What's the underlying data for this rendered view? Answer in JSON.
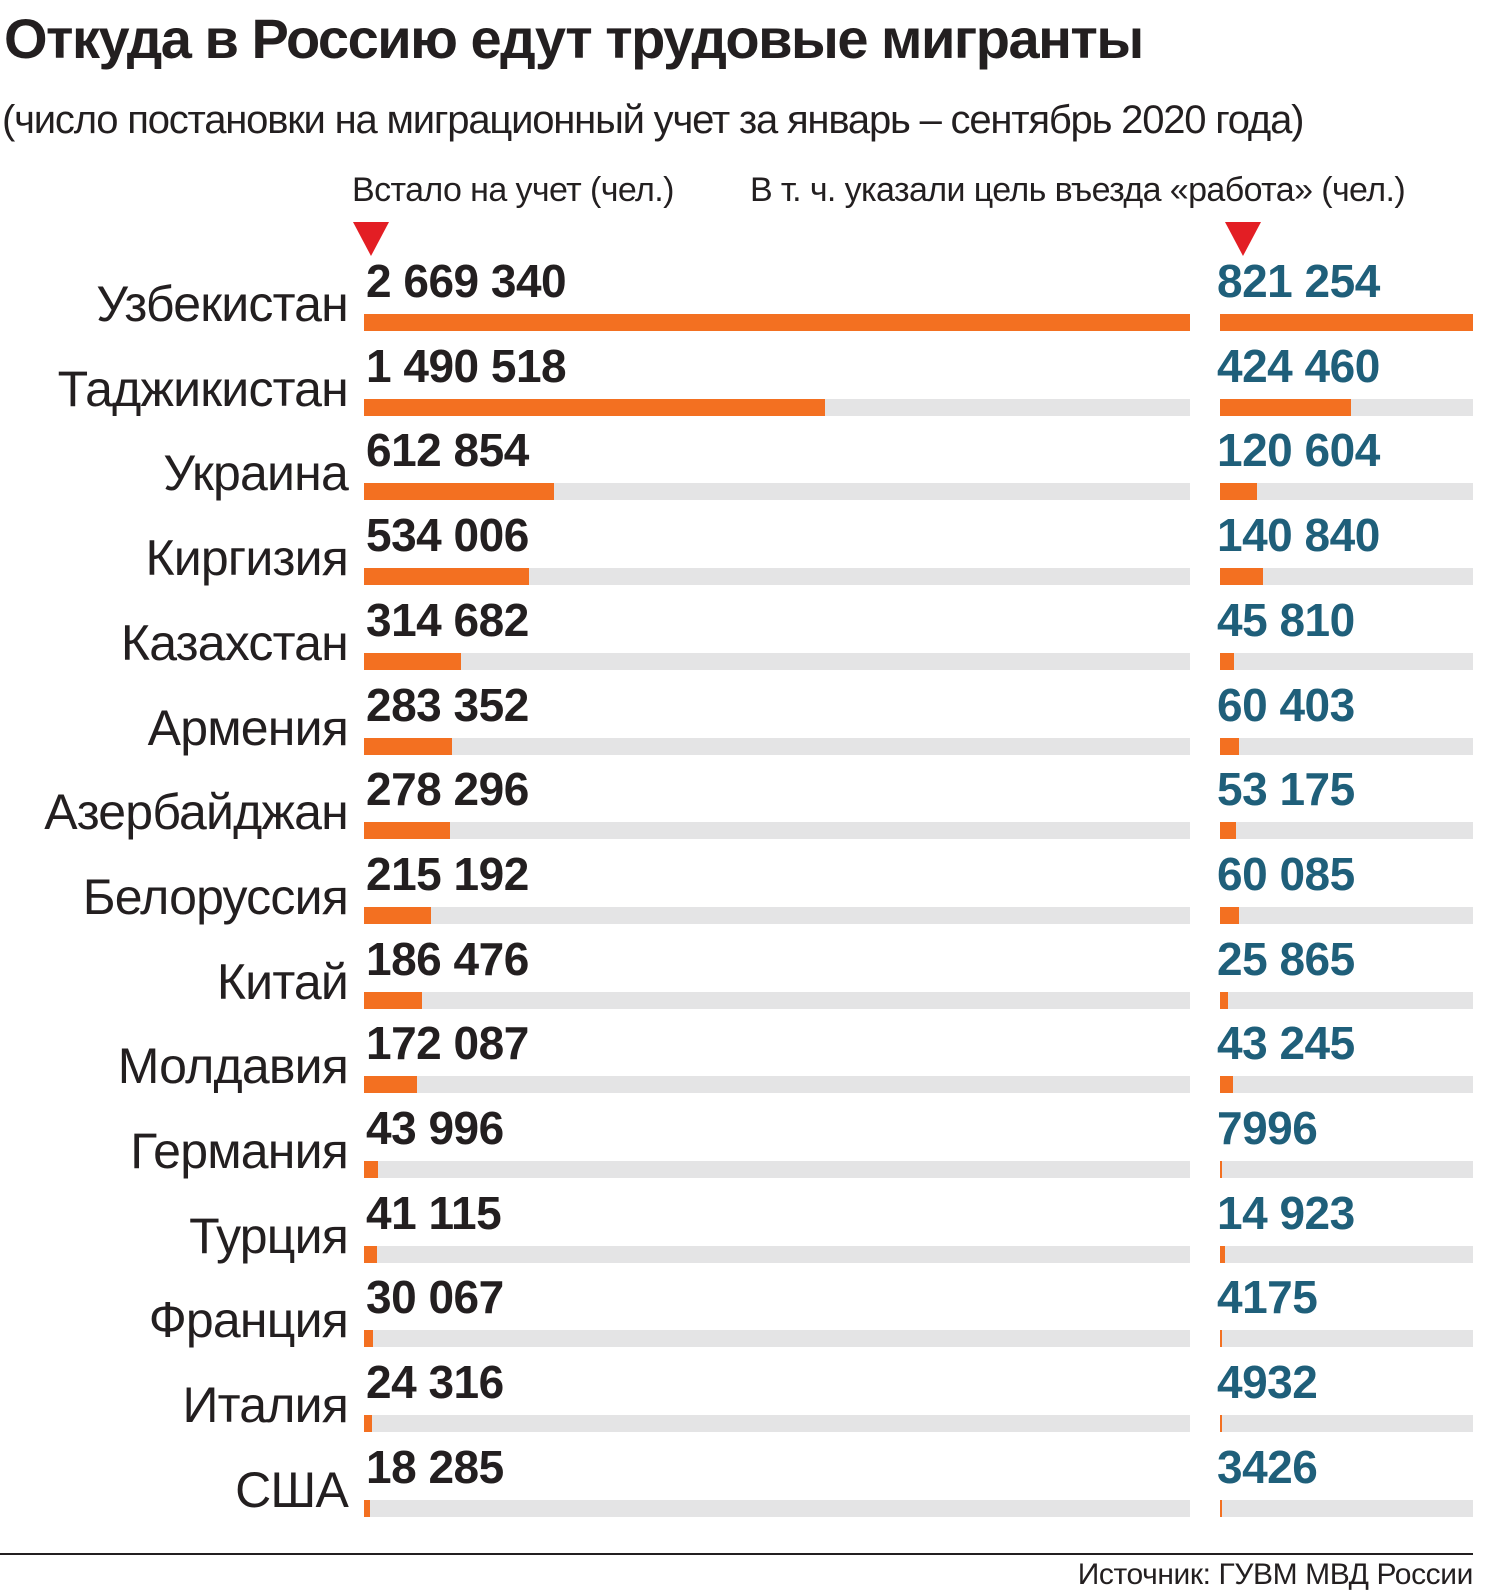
{
  "title": "Откуда в Россию едут трудовые мигранты",
  "subtitle": "(число постановки на миграционный учет за январь – сентябрь 2020 года)",
  "columns": {
    "registered": "Встало на учет (чел.)",
    "work_purpose": "В т. ч. указали цель въезда «работа» (чел.)"
  },
  "source": "Источник: ГУВМ МВД России",
  "colors": {
    "bar": "#f37021",
    "track": "#e4e4e5",
    "marker": "#e31e24",
    "work_value_text": "#1f5f7a",
    "text": "#231f20"
  },
  "chart_data": {
    "type": "bar",
    "orientation": "horizontal",
    "title": "Откуда в Россию едут трудовые мигранты",
    "subtitle": "(число постановки на миграционный учет за январь – сентябрь 2020 года)",
    "categories": [
      "Узбекистан",
      "Таджикистан",
      "Украина",
      "Киргизия",
      "Казахстан",
      "Армения",
      "Азербайджан",
      "Белоруссия",
      "Китай",
      "Молдавия",
      "Германия",
      "Турция",
      "Франция",
      "Италия",
      "США"
    ],
    "series": [
      {
        "name": "Встало на учет (чел.)",
        "values": [
          2669340,
          1490518,
          612854,
          534006,
          314682,
          283352,
          278296,
          215192,
          186476,
          172087,
          43996,
          41115,
          30067,
          24316,
          18285
        ],
        "labels": [
          "2 669 340",
          "1 490 518",
          "612 854",
          "534 006",
          "314 682",
          "283 352",
          "278 296",
          "215 192",
          "186 476",
          "172 087",
          "43 996",
          "41 115",
          "30 067",
          "24 316",
          "18 285"
        ]
      },
      {
        "name": "В т. ч. указали цель въезда «работа» (чел.)",
        "values": [
          821254,
          424460,
          120604,
          140840,
          45810,
          60403,
          53175,
          60085,
          25865,
          43245,
          7996,
          14923,
          4175,
          4932,
          3426
        ],
        "labels": [
          "821 254",
          "424 460",
          "120 604",
          "140 840",
          "45 810",
          "60 403",
          "53 175",
          "60 085",
          "25 865",
          "43 245",
          "7996",
          "14 923",
          "4175",
          "4932",
          "3426"
        ]
      }
    ],
    "legend": "none",
    "grid": false
  }
}
